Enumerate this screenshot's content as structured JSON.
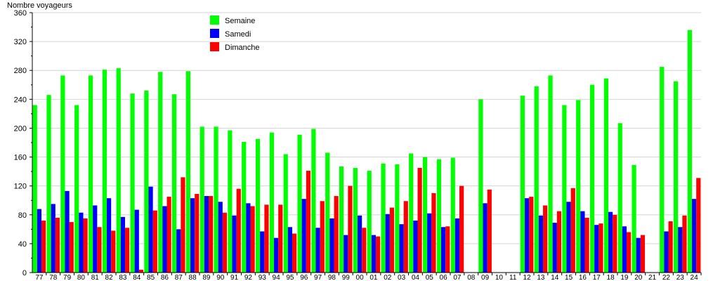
{
  "chart_data": {
    "type": "bar",
    "ylabel": "Nombre voyageurs",
    "ylim": [
      0,
      360
    ],
    "yticks": [
      0,
      40,
      80,
      120,
      160,
      200,
      240,
      280,
      320,
      360
    ],
    "grid": true,
    "legend_position": "top-left",
    "categories": [
      "77",
      "78",
      "79",
      "80",
      "81",
      "82",
      "83",
      "84",
      "85",
      "86",
      "87",
      "88",
      "89",
      "90",
      "91",
      "92",
      "93",
      "94",
      "95",
      "96",
      "97",
      "98",
      "99",
      "00",
      "01",
      "02",
      "03",
      "04",
      "05",
      "06",
      "07",
      "08",
      "09",
      "10",
      "11",
      "12",
      "13",
      "14",
      "15",
      "16",
      "17",
      "18",
      "19",
      "20",
      "21",
      "22",
      "23",
      "24"
    ],
    "series": [
      {
        "name": "Semaine",
        "color": "#00ff00",
        "values": [
          232,
          246,
          273,
          232,
          273,
          281,
          283,
          248,
          252,
          278,
          247,
          279,
          202,
          202,
          197,
          181,
          185,
          194,
          164,
          191,
          199,
          166,
          147,
          145,
          141,
          151,
          150,
          165,
          160,
          157,
          159,
          null,
          240,
          null,
          null,
          245,
          258,
          273,
          232,
          239,
          260,
          269,
          207,
          149,
          null,
          285,
          265,
          336
        ]
      },
      {
        "name": "Samedi",
        "color": "#0000ff",
        "values": [
          88,
          95,
          113,
          83,
          93,
          103,
          77,
          87,
          119,
          92,
          60,
          103,
          106,
          98,
          79,
          96,
          57,
          48,
          63,
          102,
          62,
          75,
          52,
          79,
          52,
          81,
          67,
          72,
          82,
          63,
          75,
          null,
          96,
          null,
          null,
          103,
          79,
          69,
          98,
          85,
          66,
          84,
          64,
          48,
          null,
          57,
          63,
          102
        ]
      },
      {
        "name": "Dimanche",
        "color": "#ff0000",
        "values": [
          72,
          76,
          70,
          75,
          63,
          58,
          62,
          4,
          86,
          105,
          132,
          109,
          106,
          83,
          116,
          92,
          94,
          94,
          54,
          141,
          99,
          106,
          120,
          62,
          50,
          90,
          99,
          145,
          110,
          64,
          120,
          null,
          115,
          null,
          null,
          105,
          93,
          85,
          117,
          76,
          68,
          80,
          56,
          52,
          null,
          71,
          79,
          131
        ]
      }
    ]
  }
}
